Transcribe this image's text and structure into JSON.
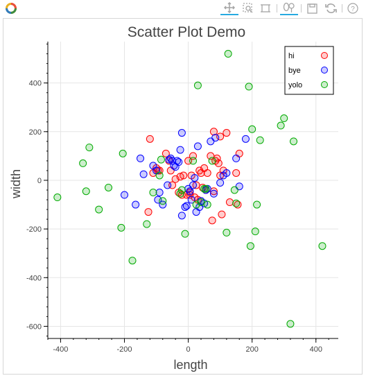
{
  "toolbar": {
    "logo_icon": "bokeh-logo-icon",
    "tools": [
      {
        "icon": "pan-icon",
        "active": true
      },
      {
        "icon": "box-zoom-icon",
        "active": false
      },
      {
        "icon": "reset-selection-icon",
        "active": false
      },
      {
        "icon": "lasso-select-icon",
        "active": true
      },
      {
        "icon": "save-icon",
        "active": false
      },
      {
        "icon": "reset-icon",
        "active": false
      },
      {
        "icon": "help-icon",
        "active": false
      }
    ],
    "colors": {
      "active_underline": "#26aae1",
      "icon": "#a4a4a4"
    }
  },
  "chart_data": {
    "type": "scatter",
    "title": "Scatter Plot Demo",
    "xlabel": "length",
    "ylabel": "width",
    "xlim": [
      -440,
      470
    ],
    "ylim": [
      -650,
      570
    ],
    "xticks": [
      -400,
      -200,
      0,
      200,
      400
    ],
    "yticks": [
      -600,
      -400,
      -200,
      0,
      200,
      400
    ],
    "grid": true,
    "legend_position": "top-right",
    "series": [
      {
        "name": "hi",
        "color": "#ff0000",
        "x": [
          -120,
          -110,
          -100,
          -95,
          -70,
          -60,
          -55,
          -50,
          -40,
          -30,
          -25,
          -20,
          -15,
          -5,
          0,
          5,
          10,
          15,
          20,
          25,
          30,
          35,
          40,
          45,
          50,
          55,
          60,
          70,
          80,
          85,
          90,
          95,
          100,
          105,
          110,
          120,
          130,
          150,
          155,
          160,
          -125,
          -90,
          5,
          75,
          80,
          100
        ],
        "y": [
          170,
          30,
          50,
          40,
          110,
          80,
          40,
          -20,
          5,
          -50,
          15,
          -60,
          20,
          -60,
          80,
          -50,
          20,
          100,
          -70,
          -20,
          -80,
          40,
          30,
          -30,
          50,
          -40,
          30,
          100,
          200,
          80,
          90,
          70,
          180,
          -140,
          40,
          195,
          -90,
          30,
          -100,
          110,
          -130,
          40,
          -60,
          -165,
          -45,
          20
        ]
      },
      {
        "name": "bye",
        "color": "#0000ff",
        "x": [
          -200,
          -165,
          -150,
          -140,
          -110,
          -100,
          -95,
          -90,
          -80,
          -65,
          -60,
          -55,
          -50,
          -45,
          -40,
          -35,
          -30,
          -25,
          -20,
          -10,
          -5,
          0,
          5,
          10,
          15,
          20,
          25,
          30,
          40,
          50,
          55,
          60,
          70,
          80,
          85,
          100,
          110,
          120,
          150,
          160,
          180,
          -20,
          35
        ],
        "y": [
          -60,
          -100,
          90,
          25,
          60,
          40,
          -80,
          -50,
          -100,
          -20,
          85,
          90,
          80,
          60,
          55,
          80,
          75,
          125,
          195,
          -110,
          -105,
          -35,
          -45,
          -80,
          -20,
          10,
          -130,
          140,
          -85,
          -95,
          -40,
          -35,
          160,
          -55,
          175,
          -10,
          20,
          30,
          90,
          -25,
          170,
          -145,
          -110
        ]
      },
      {
        "name": "yolo",
        "color": "#00aa00",
        "x": [
          -410,
          -330,
          -320,
          -310,
          -280,
          -250,
          -210,
          -205,
          -175,
          -130,
          -110,
          -90,
          -85,
          -80,
          -25,
          -10,
          15,
          25,
          30,
          40,
          50,
          55,
          60,
          75,
          120,
          125,
          145,
          150,
          190,
          195,
          200,
          210,
          215,
          225,
          290,
          300,
          320,
          330,
          420,
          -20
        ],
        "y": [
          -70,
          70,
          -45,
          135,
          -120,
          -30,
          -195,
          110,
          -330,
          -180,
          -50,
          20,
          85,
          -85,
          -55,
          -220,
          80,
          -100,
          390,
          -90,
          -35,
          -35,
          -100,
          80,
          -215,
          520,
          -40,
          -95,
          385,
          -270,
          210,
          -210,
          -100,
          165,
          225,
          255,
          -590,
          160,
          -270,
          -40
        ]
      }
    ]
  }
}
